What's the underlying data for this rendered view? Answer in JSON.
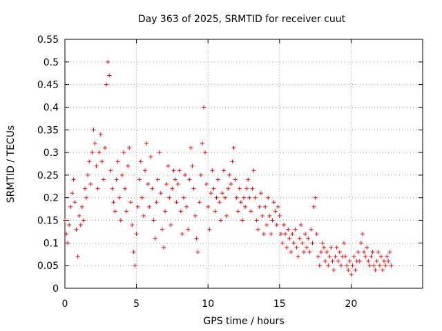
{
  "chart_data": {
    "type": "scatter",
    "title": "Day 363 of 2025, SRMTID for receiver cuut",
    "xlabel": "GPS time / hours",
    "ylabel": "SRMTID / TECUs",
    "xlim": [
      0,
      25
    ],
    "ylim": [
      0,
      0.55
    ],
    "x_ticks": [
      0,
      5,
      10,
      15,
      20
    ],
    "x_tick_labels": [
      "0",
      "5",
      "10",
      "15",
      "20"
    ],
    "y_ticks": [
      0,
      0.05,
      0.1,
      0.15,
      0.2,
      0.25,
      0.3,
      0.35,
      0.4,
      0.45,
      0.5,
      0.55
    ],
    "y_tick_labels": [
      "0",
      "0.05",
      "0.1",
      "0.15",
      "0.2",
      "0.25",
      "0.3",
      "0.35",
      "0.4",
      "0.45",
      "0.5",
      "0.55"
    ],
    "grid": true,
    "marker": "+",
    "color": "#ff0000",
    "series": [
      {
        "name": "SRMTID",
        "points": [
          [
            0.0,
            0.15
          ],
          [
            0.1,
            0.12
          ],
          [
            0.2,
            0.1
          ],
          [
            0.3,
            0.14
          ],
          [
            0.4,
            0.18
          ],
          [
            0.5,
            0.21
          ],
          [
            0.6,
            0.24
          ],
          [
            0.7,
            0.19
          ],
          [
            0.8,
            0.13
          ],
          [
            0.9,
            0.07
          ],
          [
            1.0,
            0.16
          ],
          [
            1.1,
            0.14
          ],
          [
            1.2,
            0.18
          ],
          [
            1.3,
            0.15
          ],
          [
            1.4,
            0.22
          ],
          [
            1.5,
            0.2
          ],
          [
            1.6,
            0.25
          ],
          [
            1.7,
            0.28
          ],
          [
            1.8,
            0.23
          ],
          [
            1.9,
            0.3
          ],
          [
            2.0,
            0.35
          ],
          [
            2.1,
            0.32
          ],
          [
            2.2,
            0.27
          ],
          [
            2.3,
            0.22
          ],
          [
            2.4,
            0.3
          ],
          [
            2.5,
            0.34
          ],
          [
            2.6,
            0.28
          ],
          [
            2.7,
            0.24
          ],
          [
            2.8,
            0.31
          ],
          [
            2.9,
            0.45
          ],
          [
            3.0,
            0.5
          ],
          [
            3.1,
            0.47
          ],
          [
            3.2,
            0.26
          ],
          [
            3.3,
            0.22
          ],
          [
            3.4,
            0.19
          ],
          [
            3.5,
            0.17
          ],
          [
            3.6,
            0.24
          ],
          [
            3.7,
            0.28
          ],
          [
            3.8,
            0.2
          ],
          [
            3.9,
            0.15
          ],
          [
            4.0,
            0.25
          ],
          [
            4.1,
            0.3
          ],
          [
            4.2,
            0.22
          ],
          [
            4.3,
            0.17
          ],
          [
            4.4,
            0.27
          ],
          [
            4.5,
            0.31
          ],
          [
            4.6,
            0.19
          ],
          [
            4.7,
            0.14
          ],
          [
            4.8,
            0.08
          ],
          [
            4.9,
            0.05
          ],
          [
            5.0,
            0.12
          ],
          [
            5.1,
            0.18
          ],
          [
            5.2,
            0.24
          ],
          [
            5.3,
            0.28
          ],
          [
            5.4,
            0.2
          ],
          [
            5.5,
            0.16
          ],
          [
            5.6,
            0.26
          ],
          [
            5.7,
            0.32
          ],
          [
            5.8,
            0.23
          ],
          [
            5.9,
            0.18
          ],
          [
            6.0,
            0.29
          ],
          [
            6.1,
            0.22
          ],
          [
            6.2,
            0.15
          ],
          [
            6.3,
            0.11
          ],
          [
            6.4,
            0.19
          ],
          [
            6.5,
            0.24
          ],
          [
            6.6,
            0.3
          ],
          [
            6.7,
            0.21
          ],
          [
            6.8,
            0.13
          ],
          [
            6.9,
            0.09
          ],
          [
            7.0,
            0.17
          ],
          [
            7.1,
            0.23
          ],
          [
            7.2,
            0.27
          ],
          [
            7.3,
            0.2
          ],
          [
            7.4,
            0.14
          ],
          [
            7.5,
            0.22
          ],
          [
            7.6,
            0.26
          ],
          [
            7.7,
            0.24
          ],
          [
            7.8,
            0.19
          ],
          [
            7.9,
            0.23
          ],
          [
            8.0,
            0.26
          ],
          [
            8.1,
            0.17
          ],
          [
            8.2,
            0.12
          ],
          [
            8.3,
            0.2
          ],
          [
            8.4,
            0.25
          ],
          [
            8.5,
            0.18
          ],
          [
            8.6,
            0.13
          ],
          [
            8.7,
            0.24
          ],
          [
            8.8,
            0.31
          ],
          [
            8.9,
            0.27
          ],
          [
            9.0,
            0.22
          ],
          [
            9.1,
            0.16
          ],
          [
            9.2,
            0.11
          ],
          [
            9.3,
            0.08
          ],
          [
            9.4,
            0.19
          ],
          [
            9.5,
            0.25
          ],
          [
            9.6,
            0.32
          ],
          [
            9.7,
            0.4
          ],
          [
            9.8,
            0.3
          ],
          [
            9.9,
            0.23
          ],
          [
            10.0,
            0.18
          ],
          [
            10.1,
            0.13
          ],
          [
            10.2,
            0.21
          ],
          [
            10.3,
            0.26
          ],
          [
            10.4,
            0.22
          ],
          [
            10.5,
            0.17
          ],
          [
            10.6,
            0.2
          ],
          [
            10.7,
            0.24
          ],
          [
            10.8,
            0.19
          ],
          [
            10.9,
            0.15
          ],
          [
            11.0,
            0.21
          ],
          [
            11.1,
            0.26
          ],
          [
            11.2,
            0.2
          ],
          [
            11.3,
            0.16
          ],
          [
            11.4,
            0.22
          ],
          [
            11.5,
            0.25
          ],
          [
            11.6,
            0.23
          ],
          [
            11.7,
            0.28
          ],
          [
            11.8,
            0.31
          ],
          [
            11.9,
            0.24
          ],
          [
            12.0,
            0.2
          ],
          [
            12.1,
            0.17
          ],
          [
            12.2,
            0.22
          ],
          [
            12.3,
            0.19
          ],
          [
            12.4,
            0.15
          ],
          [
            12.5,
            0.2
          ],
          [
            12.6,
            0.18
          ],
          [
            12.7,
            0.22
          ],
          [
            12.8,
            0.24
          ],
          [
            12.9,
            0.2
          ],
          [
            13.0,
            0.17
          ],
          [
            13.1,
            0.22
          ],
          [
            13.2,
            0.26
          ],
          [
            13.3,
            0.2
          ],
          [
            13.4,
            0.15
          ],
          [
            13.5,
            0.13
          ],
          [
            13.6,
            0.18
          ],
          [
            13.7,
            0.21
          ],
          [
            13.8,
            0.16
          ],
          [
            13.9,
            0.12
          ],
          [
            14.0,
            0.18
          ],
          [
            14.1,
            0.14
          ],
          [
            14.2,
            0.2
          ],
          [
            14.3,
            0.16
          ],
          [
            14.4,
            0.12
          ],
          [
            14.5,
            0.15
          ],
          [
            14.6,
            0.19
          ],
          [
            14.7,
            0.17
          ],
          [
            14.8,
            0.14
          ],
          [
            14.9,
            0.18
          ],
          [
            15.0,
            0.16
          ],
          [
            15.1,
            0.12
          ],
          [
            15.2,
            0.1
          ],
          [
            15.3,
            0.14
          ],
          [
            15.4,
            0.12
          ],
          [
            15.5,
            0.09
          ],
          [
            15.6,
            0.13
          ],
          [
            15.7,
            0.11
          ],
          [
            15.8,
            0.08
          ],
          [
            15.9,
            0.12
          ],
          [
            16.0,
            0.1
          ],
          [
            16.1,
            0.13
          ],
          [
            16.2,
            0.09
          ],
          [
            16.3,
            0.07
          ],
          [
            16.4,
            0.11
          ],
          [
            16.5,
            0.14
          ],
          [
            16.6,
            0.1
          ],
          [
            16.7,
            0.08
          ],
          [
            16.8,
            0.12
          ],
          [
            16.9,
            0.09
          ],
          [
            17.0,
            0.11
          ],
          [
            17.1,
            0.08
          ],
          [
            17.2,
            0.13
          ],
          [
            17.3,
            0.1
          ],
          [
            17.4,
            0.18
          ],
          [
            17.5,
            0.2
          ],
          [
            17.6,
            0.12
          ],
          [
            17.7,
            0.07
          ],
          [
            17.8,
            0.05
          ],
          [
            17.9,
            0.08
          ],
          [
            18.0,
            0.1
          ],
          [
            18.1,
            0.09
          ],
          [
            18.2,
            0.06
          ],
          [
            18.3,
            0.08
          ],
          [
            18.4,
            0.05
          ],
          [
            18.5,
            0.07
          ],
          [
            18.6,
            0.09
          ],
          [
            18.7,
            0.06
          ],
          [
            18.8,
            0.04
          ],
          [
            18.9,
            0.07
          ],
          [
            19.0,
            0.09
          ],
          [
            19.1,
            0.06
          ],
          [
            19.2,
            0.08
          ],
          [
            19.3,
            0.05
          ],
          [
            19.4,
            0.07
          ],
          [
            19.5,
            0.1
          ],
          [
            19.6,
            0.07
          ],
          [
            19.7,
            0.05
          ],
          [
            19.8,
            0.04
          ],
          [
            19.9,
            0.06
          ],
          [
            20.0,
            0.03
          ],
          [
            20.1,
            0.05
          ],
          [
            20.2,
            0.07
          ],
          [
            20.3,
            0.04
          ],
          [
            20.4,
            0.06
          ],
          [
            20.5,
            0.08
          ],
          [
            20.6,
            0.06
          ],
          [
            20.7,
            0.1
          ],
          [
            20.8,
            0.12
          ],
          [
            20.9,
            0.08
          ],
          [
            21.0,
            0.07
          ],
          [
            21.1,
            0.09
          ],
          [
            21.2,
            0.06
          ],
          [
            21.3,
            0.05
          ],
          [
            21.4,
            0.07
          ],
          [
            21.5,
            0.08
          ],
          [
            21.6,
            0.05
          ],
          [
            21.7,
            0.04
          ],
          [
            21.8,
            0.06
          ],
          [
            21.9,
            0.08
          ],
          [
            22.0,
            0.05
          ],
          [
            22.1,
            0.07
          ],
          [
            22.2,
            0.04
          ],
          [
            22.3,
            0.06
          ],
          [
            22.4,
            0.05
          ],
          [
            22.5,
            0.07
          ],
          [
            22.6,
            0.06
          ],
          [
            22.7,
            0.08
          ],
          [
            22.8,
            0.05
          ]
        ]
      }
    ]
  }
}
